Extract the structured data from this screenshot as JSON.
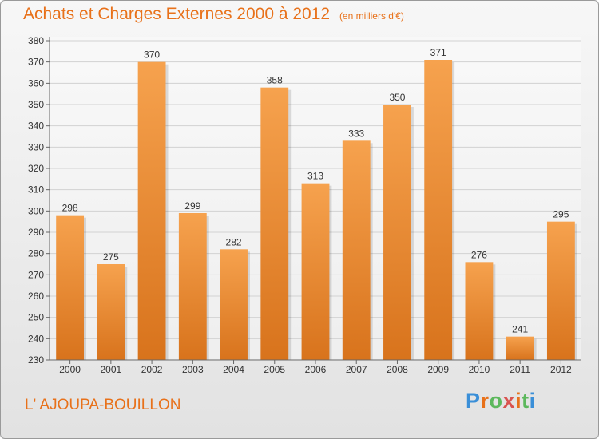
{
  "header": {
    "title": "Achats et Charges Externes 2000 à 2012",
    "unit": "(en milliers d'€)"
  },
  "footer": {
    "commune": "L' AJOUPA-BOUILLON",
    "logo": "Proxiti"
  },
  "colors": {
    "bar_light": "#f6a24e",
    "bar_dark": "#d8731c",
    "title": "#e8711a",
    "grid": "#d2d2d2"
  },
  "chart_data": {
    "type": "bar",
    "title": "Achats et Charges Externes 2000 à 2012",
    "subtitle": "(en milliers d'€)",
    "categories": [
      "2000",
      "2001",
      "2002",
      "2003",
      "2004",
      "2005",
      "2006",
      "2007",
      "2008",
      "2009",
      "2010",
      "2011",
      "2012"
    ],
    "values": [
      298,
      275,
      370,
      299,
      282,
      358,
      313,
      333,
      350,
      371,
      276,
      241,
      295
    ],
    "ylim": [
      230,
      380
    ],
    "yticks": [
      230,
      240,
      250,
      260,
      270,
      280,
      290,
      300,
      310,
      320,
      330,
      340,
      350,
      360,
      370,
      380
    ],
    "grid": true,
    "data_labels": true
  }
}
